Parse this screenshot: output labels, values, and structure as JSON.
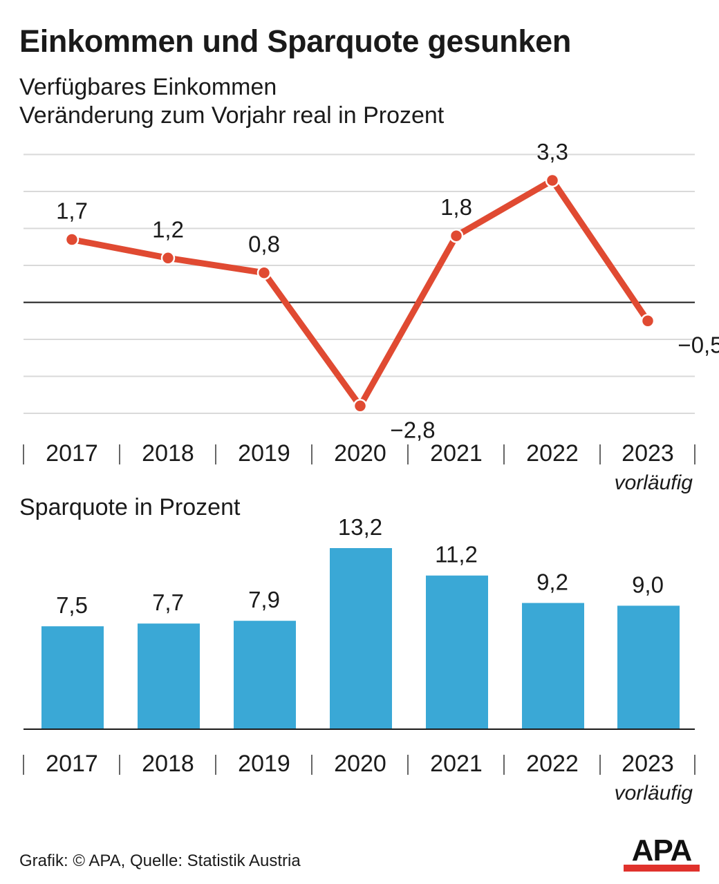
{
  "title": "Einkommen und Sparquote gesunken",
  "footer": "Grafik: © APA, Quelle: Statistik Austria",
  "logo_text": "APA",
  "colors": {
    "line": "#e04a32",
    "bar": "#3aa8d6",
    "grid": "#d9d9d9",
    "axis": "#1a1a1a"
  },
  "chart_data": [
    {
      "type": "line",
      "title": "Verfügbares Einkommen",
      "subtitle": "Veränderung zum Vorjahr real in Prozent",
      "categories": [
        "2017",
        "2018",
        "2019",
        "2020",
        "2021",
        "2022",
        "2023"
      ],
      "values": [
        1.7,
        1.2,
        0.8,
        -2.8,
        1.8,
        3.3,
        -0.5
      ],
      "labels": [
        "1,7",
        "1,2",
        "0,8",
        "−2,8",
        "1,8",
        "3,3",
        "−0,5"
      ],
      "category_note": "vorläufig",
      "ylim": [
        -3,
        4
      ],
      "grid": true
    },
    {
      "type": "bar",
      "title": "Sparquote in Prozent",
      "categories": [
        "2017",
        "2018",
        "2019",
        "2020",
        "2021",
        "2022",
        "2023"
      ],
      "values": [
        7.5,
        7.7,
        7.9,
        13.2,
        11.2,
        9.2,
        9.0
      ],
      "labels": [
        "7,5",
        "7,7",
        "7,9",
        "13,2",
        "11,2",
        "9,2",
        "9,0"
      ],
      "category_note": "vorläufig",
      "ylim": [
        0,
        13.2
      ]
    }
  ]
}
